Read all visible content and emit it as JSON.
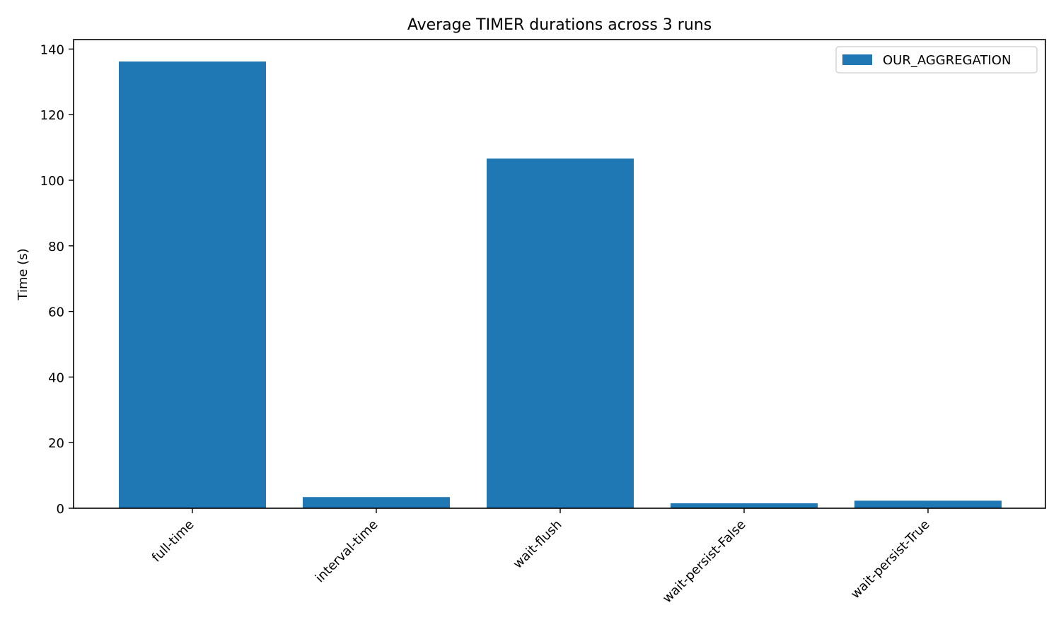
{
  "chart_data": {
    "type": "bar",
    "title": "Average TIMER durations across 3 runs",
    "xlabel": "",
    "ylabel": "Time (s)",
    "categories": [
      "full-time",
      "interval-time",
      "wait-flush",
      "wait-persist-False",
      "wait-persist-True"
    ],
    "series": [
      {
        "name": "OUR_AGGREGATION",
        "color": "#1f77b4",
        "values": [
          136.2,
          3.4,
          106.6,
          1.5,
          2.3
        ]
      }
    ],
    "ylim": [
      0,
      143
    ],
    "yticks": [
      0,
      20,
      40,
      60,
      80,
      100,
      120,
      140
    ],
    "grid": false,
    "legend_position": "top-right"
  }
}
